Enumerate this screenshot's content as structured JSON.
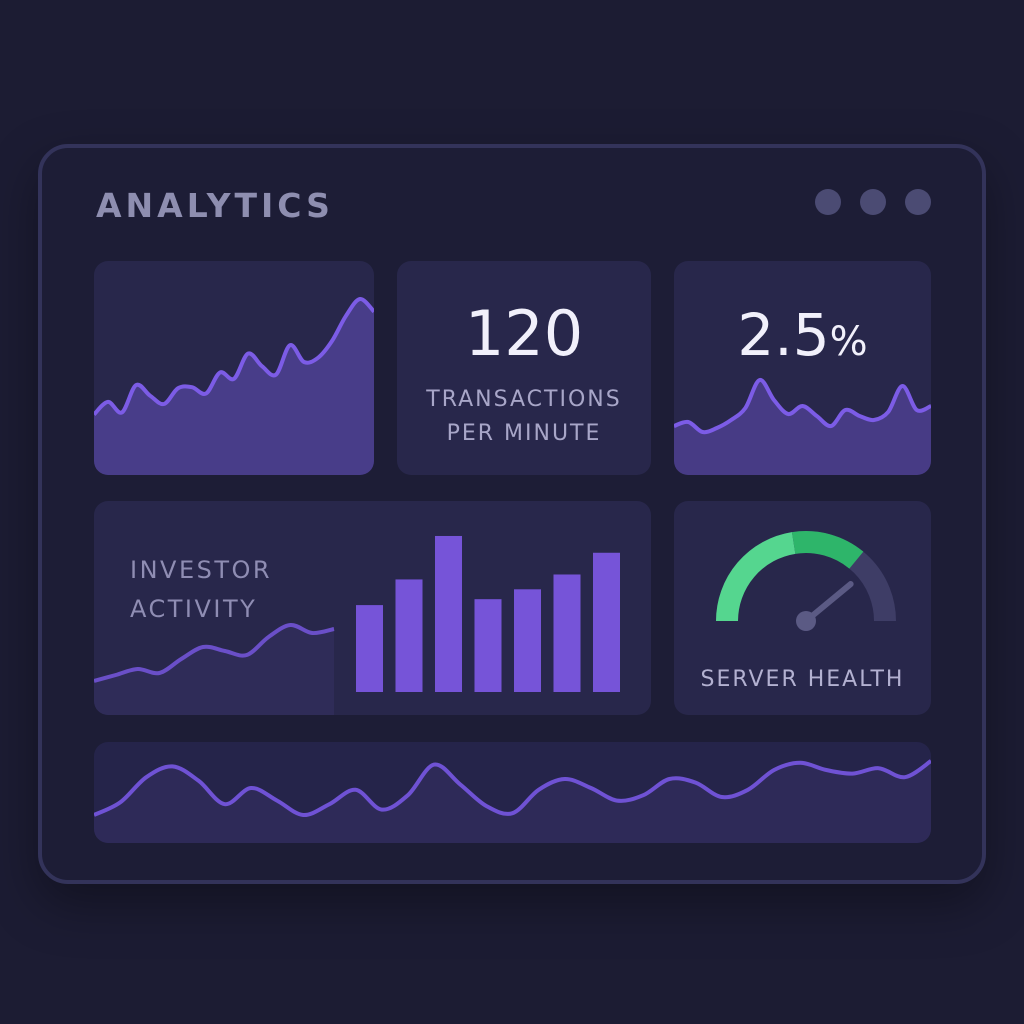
{
  "header": {
    "title": "ANALYTICS",
    "window_controls": [
      "dot-1",
      "dot-2",
      "dot-3"
    ]
  },
  "transactions": {
    "value": "120",
    "label_line1": "TRANSACTIONS",
    "label_line2": "PER MINUTE"
  },
  "rate": {
    "value": "2.5",
    "unit": "%"
  },
  "investor": {
    "label_line1": "INVESTOR",
    "label_line2": "ACTIVITY"
  },
  "server": {
    "label": "SERVER HEALTH",
    "health_fraction": 0.72
  },
  "colors": {
    "background": "#1c1c33",
    "card": "#28274b",
    "line": "#7c5ce6",
    "bar": "#7654d8",
    "gauge_green": "#3fca7e",
    "gauge_track": "#3e3d66"
  },
  "chart_data": [
    {
      "type": "area",
      "name": "top-left-trend",
      "x": [
        0,
        1,
        2,
        3,
        4,
        5,
        6,
        7,
        8,
        9,
        10,
        11,
        12,
        13,
        14,
        15,
        16,
        17,
        18,
        19,
        20
      ],
      "values": [
        30,
        42,
        32,
        58,
        48,
        40,
        55,
        56,
        50,
        70,
        64,
        88,
        76,
        68,
        96,
        80,
        84,
        100,
        124,
        140,
        128
      ]
    },
    {
      "type": "area",
      "name": "rate-sparkline",
      "x": [
        0,
        1,
        2,
        3,
        4,
        5,
        6,
        7,
        8,
        9,
        10,
        11,
        12,
        13,
        14,
        15,
        16,
        17,
        18
      ],
      "values": [
        30,
        34,
        24,
        28,
        36,
        48,
        76,
        56,
        42,
        50,
        40,
        30,
        46,
        40,
        36,
        44,
        70,
        46,
        50
      ]
    },
    {
      "type": "area",
      "name": "investor-activity-line",
      "x": [
        0,
        1,
        2,
        3,
        4,
        5,
        6,
        7,
        8,
        9,
        10,
        11
      ],
      "values": [
        20,
        26,
        32,
        28,
        42,
        54,
        50,
        46,
        64,
        76,
        68,
        72
      ]
    },
    {
      "type": "bar",
      "name": "investor-activity-bars",
      "categories": [
        "1",
        "2",
        "3",
        "4",
        "5",
        "6",
        "7"
      ],
      "values": [
        88,
        114,
        158,
        94,
        104,
        119,
        141
      ],
      "ylim": [
        0,
        160
      ]
    },
    {
      "type": "area",
      "name": "bottom-wave",
      "x": [
        0,
        1,
        2,
        3,
        4,
        5,
        6,
        7,
        8,
        9,
        10,
        11,
        12,
        13,
        14,
        15,
        16,
        17,
        18,
        19,
        20,
        21,
        22,
        23,
        24,
        25,
        26,
        27,
        28,
        29,
        30,
        31,
        32
      ],
      "values": [
        30,
        44,
        72,
        84,
        68,
        42,
        60,
        46,
        30,
        42,
        58,
        36,
        52,
        86,
        64,
        40,
        32,
        58,
        70,
        60,
        46,
        52,
        70,
        66,
        50,
        58,
        80,
        88,
        80,
        76,
        82,
        72,
        90
      ]
    }
  ]
}
